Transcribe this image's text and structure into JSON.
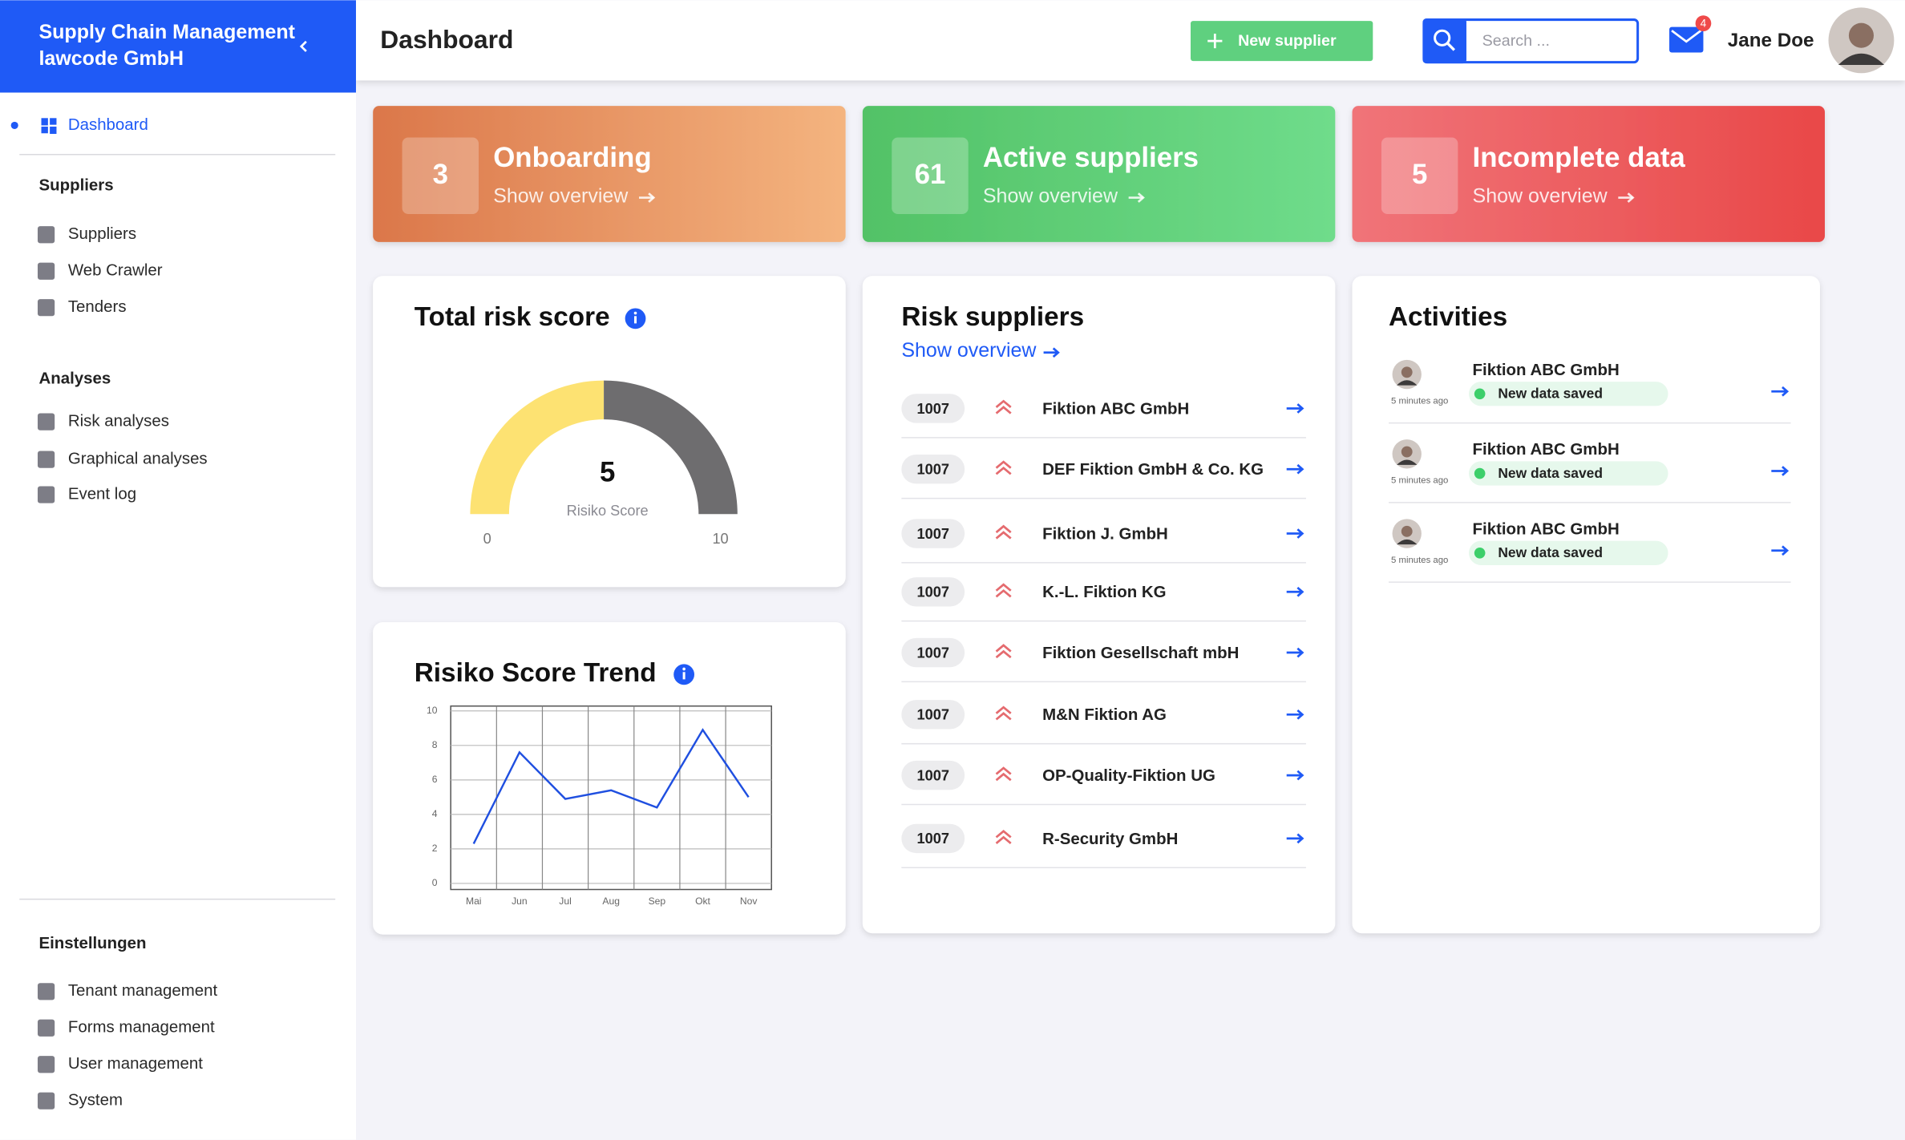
{
  "sidebar": {
    "brand_line1": "Supply Chain Management",
    "brand_line2": "lawcode GmbH",
    "active": "Dashboard",
    "sections": [
      {
        "title": "Suppliers",
        "items": [
          "Suppliers",
          "Web Crawler",
          "Tenders"
        ]
      },
      {
        "title": "Analyses",
        "items": [
          "Risk analyses",
          "Graphical analyses",
          "Event log"
        ]
      },
      {
        "title": "Einstellungen",
        "items": [
          "Tenant management",
          "Forms management",
          "User management",
          "System"
        ]
      }
    ]
  },
  "header": {
    "title": "Dashboard",
    "new_supplier": "New supplier",
    "search_placeholder": "Search ...",
    "notification_count": 4,
    "user": "Jane Doe"
  },
  "kpis": [
    {
      "value": 3,
      "title": "Onboarding",
      "link": "Show overview"
    },
    {
      "value": 61,
      "title": "Active suppliers",
      "link": "Show overview"
    },
    {
      "value": 5,
      "title": "Incomplete data",
      "link": "Show overview"
    }
  ],
  "risk_score": {
    "title": "Total risk score",
    "value": 5,
    "label": "Risiko Score",
    "min": 0,
    "max": 10
  },
  "risk_trend": {
    "title": "Risiko Score Trend",
    "categories": [
      "Mai",
      "Jun",
      "Jul",
      "Aug",
      "Sep",
      "Okt",
      "Nov"
    ],
    "values": [
      2.3,
      7.6,
      4.9,
      5.4,
      4.4,
      8.9,
      5.0
    ],
    "ylim": [
      0,
      10
    ],
    "yticks": [
      0,
      2,
      4,
      6,
      8,
      10
    ]
  },
  "risk_suppliers": {
    "title": "Risk suppliers",
    "link": "Show overview",
    "rows": [
      {
        "id": 1007,
        "name": "Fiktion ABC GmbH"
      },
      {
        "id": 1007,
        "name": "DEF Fiktion GmbH & Co. KG"
      },
      {
        "id": 1007,
        "name": "Fiktion J. GmbH"
      },
      {
        "id": 1007,
        "name": "K.-L. Fiktion KG"
      },
      {
        "id": 1007,
        "name": "Fiktion Gesellschaft mbH"
      },
      {
        "id": 1007,
        "name": "M&N Fiktion AG"
      },
      {
        "id": 1007,
        "name": "OP-Quality-Fiktion UG"
      },
      {
        "id": 1007,
        "name": "R-Security GmbH"
      }
    ]
  },
  "activities": {
    "title": "Activities",
    "items": [
      {
        "time": "5 minutes ago",
        "company": "Fiktion ABC GmbH",
        "status": "New data saved"
      },
      {
        "time": "5 minutes ago",
        "company": "Fiktion ABC GmbH",
        "status": "New data saved"
      },
      {
        "time": "5 minutes ago",
        "company": "Fiktion ABC GmbH",
        "status": "New data saved"
      }
    ]
  }
}
